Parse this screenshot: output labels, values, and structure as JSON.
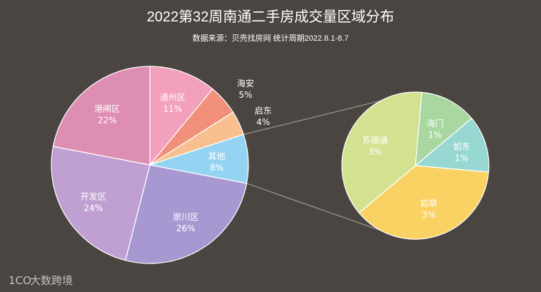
{
  "chart_data": {
    "type": "pie",
    "title": "2022第32周南通二手房成交量区域分布",
    "subtitle": "数据来源：贝壳找房网 统计周期2022.8.1-8.7",
    "main_pie": {
      "slices": [
        {
          "label": "通州区",
          "value_label": "11%",
          "value": 11,
          "color": "#f2a0bc",
          "label_pos": "inside"
        },
        {
          "label": "海安",
          "value_label": "5%",
          "value": 5,
          "color": "#f0907a",
          "label_pos": "outside"
        },
        {
          "label": "启东",
          "value_label": "4%",
          "value": 4,
          "color": "#f8c090",
          "label_pos": "outside"
        },
        {
          "label": "其他",
          "value_label": "8%",
          "value": 8,
          "color": "#94d4f2",
          "label_pos": "inside"
        },
        {
          "label": "崇川区",
          "value_label": "26%",
          "value": 26,
          "color": "#a898d2",
          "label_pos": "inside"
        },
        {
          "label": "开发区",
          "value_label": "24%",
          "value": 24,
          "color": "#c0a0d2",
          "label_pos": "inside"
        },
        {
          "label": "港闸区",
          "value_label": "22%",
          "value": 22,
          "color": "#de8eb2",
          "label_pos": "inside"
        }
      ]
    },
    "sub_pie": {
      "slices": [
        {
          "label": "海门",
          "value_label": "1%",
          "value": 1,
          "color": "#a8d8a0"
        },
        {
          "label": "如东",
          "value_label": "1%",
          "value": 1,
          "color": "#98d8d2"
        },
        {
          "label": "如皋",
          "value_label": "3%",
          "value": 3,
          "color": "#fad264"
        },
        {
          "label": "苏锡通",
          "value_label": "3%",
          "value": 3,
          "color": "#d2e290"
        }
      ]
    },
    "background": "#4a4540",
    "slice_border": "#ffffff",
    "connector_color": "#9a958f"
  },
  "watermark": {
    "logo_text": "1CO",
    "text": "大数跨境"
  }
}
